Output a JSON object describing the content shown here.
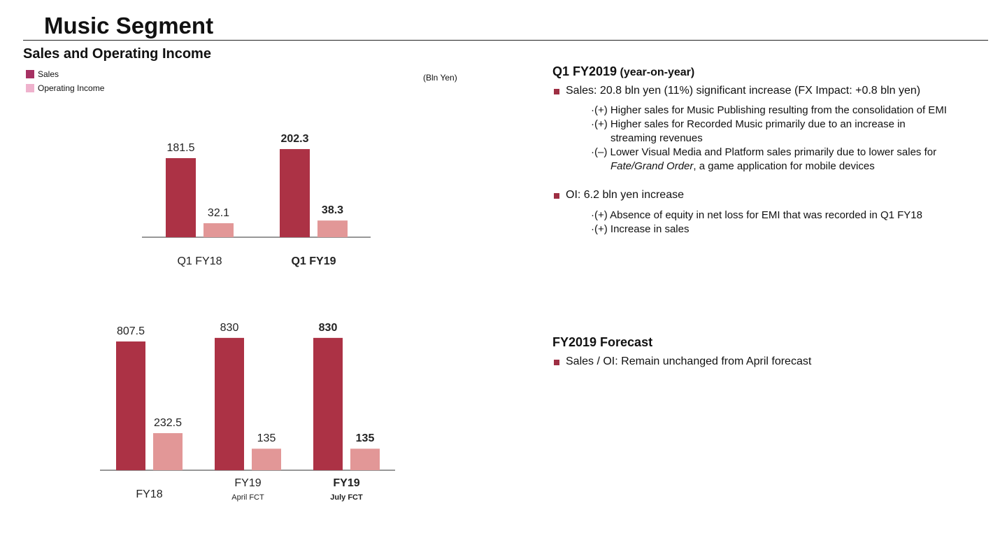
{
  "page": {
    "title": "Music Segment",
    "section_title": "Sales and Operating Income",
    "unit": "(Bln Yen)"
  },
  "colors": {
    "sales": "#ac3245",
    "operating_income": "#e29797",
    "legend_sales": "#a63163",
    "legend_oi": "#efb2cd",
    "bullet": "#9e2f43"
  },
  "legend": {
    "sales": "Sales",
    "operating_income": "Operating Income"
  },
  "chart_data": [
    {
      "type": "bar",
      "categories": [
        "Q1 FY18",
        "Q1 FY19"
      ],
      "series": [
        {
          "name": "Sales",
          "values": [
            181.5,
            202.3
          ]
        },
        {
          "name": "Operating Income",
          "values": [
            32.1,
            38.3
          ]
        }
      ],
      "bold_categories": [
        "Q1 FY19"
      ]
    },
    {
      "type": "bar",
      "categories": [
        "FY18",
        "FY19",
        "FY19"
      ],
      "category_sublabels": [
        "",
        "April FCT",
        "July FCT"
      ],
      "series": [
        {
          "name": "Sales",
          "values": [
            807.5,
            830,
            830
          ]
        },
        {
          "name": "Operating Income",
          "values": [
            232.5,
            135,
            135
          ]
        }
      ],
      "bold_categories": [
        "FY19 July FCT"
      ]
    }
  ],
  "q1": {
    "heading": "Q1 FY2019",
    "heading_sub": " (year-on-year)",
    "sales_bullet": "Sales: 20.8 bln yen (11%) significant increase (FX Impact: +0.8 bln yen)",
    "sales_items": [
      {
        "lead": "·(+) ",
        "text": "Higher sales for Music Publishing resulting from the consolidation of EMI"
      },
      {
        "lead": "·(+) ",
        "text": "Higher sales for Recorded Music primarily due to an increase in",
        "cont": "streaming revenues"
      },
      {
        "lead": "·(–) ",
        "text": "Lower Visual Media and Platform sales primarily due to lower sales for",
        "cont_italic": "Fate/Grand Order",
        "cont": ", a game application for mobile devices"
      }
    ],
    "oi_bullet": "OI: 6.2 bln yen increase",
    "oi_items": [
      {
        "lead": "·(+) ",
        "text": "Absence of equity in net loss for EMI that was recorded in Q1 FY18"
      },
      {
        "lead": "·(+) ",
        "text": "Increase in sales"
      }
    ]
  },
  "forecast": {
    "heading": "FY2019 Forecast",
    "bullet": "Sales / OI: Remain unchanged from April forecast"
  }
}
